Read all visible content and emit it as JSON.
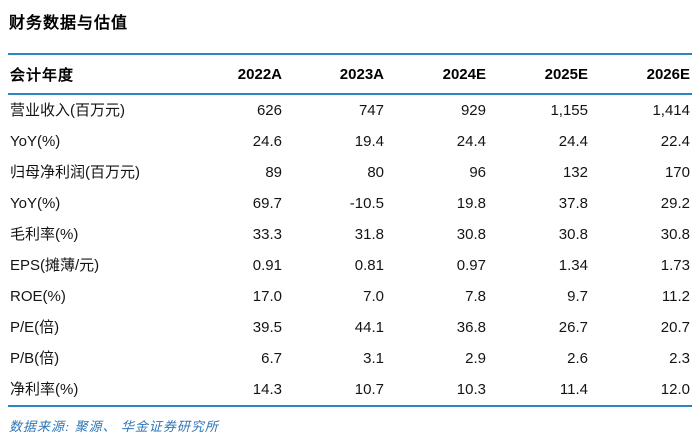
{
  "title": "财务数据与估值",
  "colors": {
    "rule_blue": "#2e86c1",
    "footer_blue": "#2e75b6",
    "text_color": "#141414"
  },
  "table": {
    "header": {
      "label": "会计年度",
      "years": [
        "2022A",
        "2023A",
        "2024E",
        "2025E",
        "2026E"
      ]
    },
    "rows": [
      {
        "label": "营业收入(百万元)",
        "values": [
          "626",
          "747",
          "929",
          "1,155",
          "1,414"
        ]
      },
      {
        "label": "YoY(%)",
        "values": [
          "24.6",
          "19.4",
          "24.4",
          "24.4",
          "22.4"
        ]
      },
      {
        "label": "归母净利润(百万元)",
        "values": [
          "89",
          "80",
          "96",
          "132",
          "170"
        ]
      },
      {
        "label": "YoY(%)",
        "values": [
          "69.7",
          "-10.5",
          "19.8",
          "37.8",
          "29.2"
        ]
      },
      {
        "label": "毛利率(%)",
        "values": [
          "33.3",
          "31.8",
          "30.8",
          "30.8",
          "30.8"
        ]
      },
      {
        "label": "EPS(摊薄/元)",
        "values": [
          "0.91",
          "0.81",
          "0.97",
          "1.34",
          "1.73"
        ]
      },
      {
        "label": "ROE(%)",
        "values": [
          "17.0",
          "7.0",
          "7.8",
          "9.7",
          "11.2"
        ]
      },
      {
        "label": "P/E(倍)",
        "values": [
          "39.5",
          "44.1",
          "36.8",
          "26.7",
          "20.7"
        ]
      },
      {
        "label": "P/B(倍)",
        "values": [
          "6.7",
          "3.1",
          "2.9",
          "2.6",
          "2.3"
        ]
      },
      {
        "label": "净利率(%)",
        "values": [
          "14.3",
          "10.7",
          "10.3",
          "11.4",
          "12.0"
        ]
      }
    ]
  },
  "footer": {
    "source_text": "数据来源: 聚源、 华金证券研究所"
  }
}
